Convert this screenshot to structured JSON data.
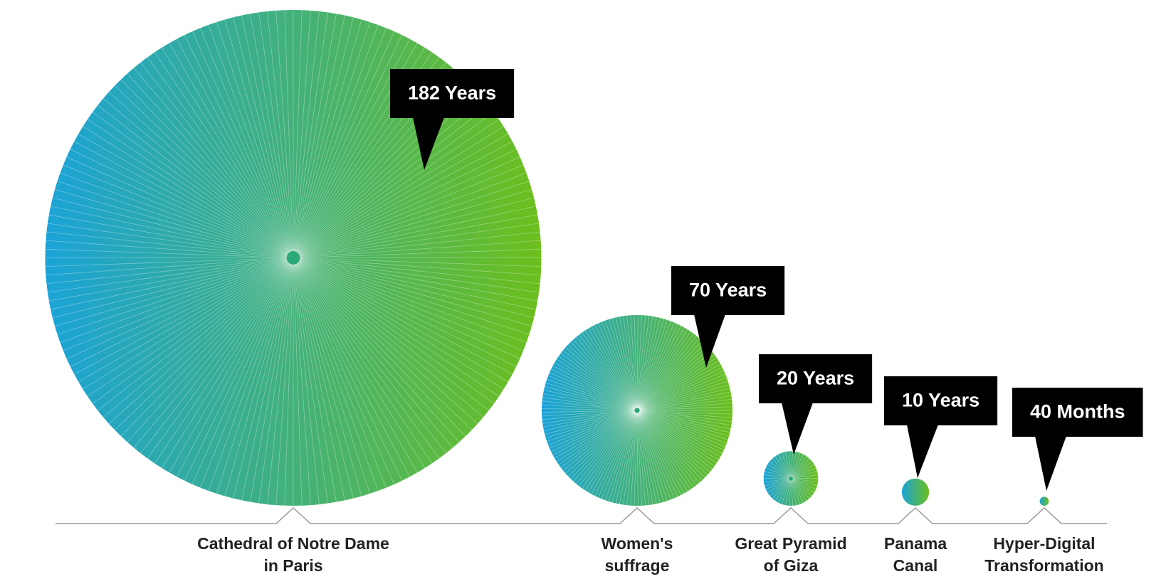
{
  "chart_data": {
    "type": "bubble",
    "categories": [
      [
        "Cathedral of Notre Dame",
        "in Paris"
      ],
      [
        "Women's",
        "suffrage"
      ],
      [
        "Great Pyramid",
        "of Giza"
      ],
      [
        "Panama",
        "Canal"
      ],
      [
        "Hyper-Digital",
        "Transformation"
      ]
    ],
    "values": [
      182,
      70,
      20,
      10,
      3.3333
    ],
    "value_labels": [
      "182 Years",
      "70 Years",
      "20 Years",
      "10 Years",
      "40 Months"
    ],
    "colors": [
      "#1aa3d8",
      "#6cbf1c"
    ]
  }
}
